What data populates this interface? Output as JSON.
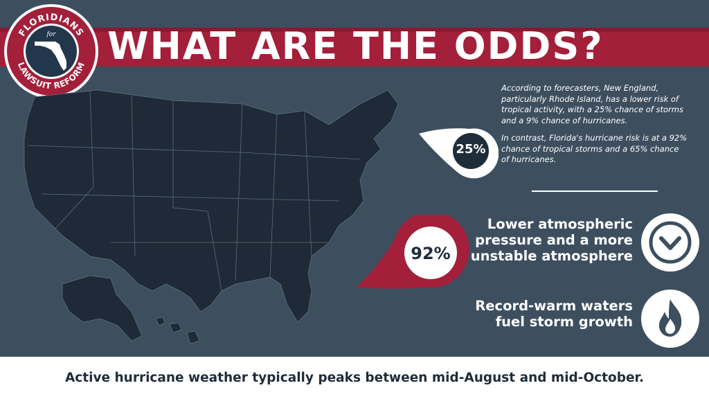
{
  "header": {
    "title": "WHAT ARE THE ODDS?"
  },
  "logo": {
    "top_text": "FLORIDIANS",
    "middle_text": "for",
    "bottom_text": "LAWSUIT REFORM"
  },
  "intro": {
    "paragraph_1": "According to forecasters, New England, particularly Rhode Island, has a lower risk of tropical activity, with a 25% chance of storms and a 9% chance of hurricanes.",
    "paragraph_2": "In contrast, Florida's hurricane risk is at a 92% chance of tropical storms and a 65% chance of hurricanes."
  },
  "pins": {
    "new_england": "25%",
    "florida": "92%"
  },
  "factors": [
    {
      "text_lines": [
        "Lower atmospheric",
        "pressure and a more",
        "unstable atmosphere"
      ],
      "icon": "chevron-down-circle-icon"
    },
    {
      "text_lines": [
        "Record-warm waters",
        "fuel storm growth"
      ],
      "icon": "flame-circle-icon"
    }
  ],
  "footer": {
    "text": "Active hurricane weather typically peaks between mid-August and mid-October."
  },
  "colors": {
    "background": "#3d4f5f",
    "accent": "#a31f3a",
    "map_fill": "#1e2a37",
    "text_dark": "#1f2c3a",
    "white": "#ffffff"
  }
}
